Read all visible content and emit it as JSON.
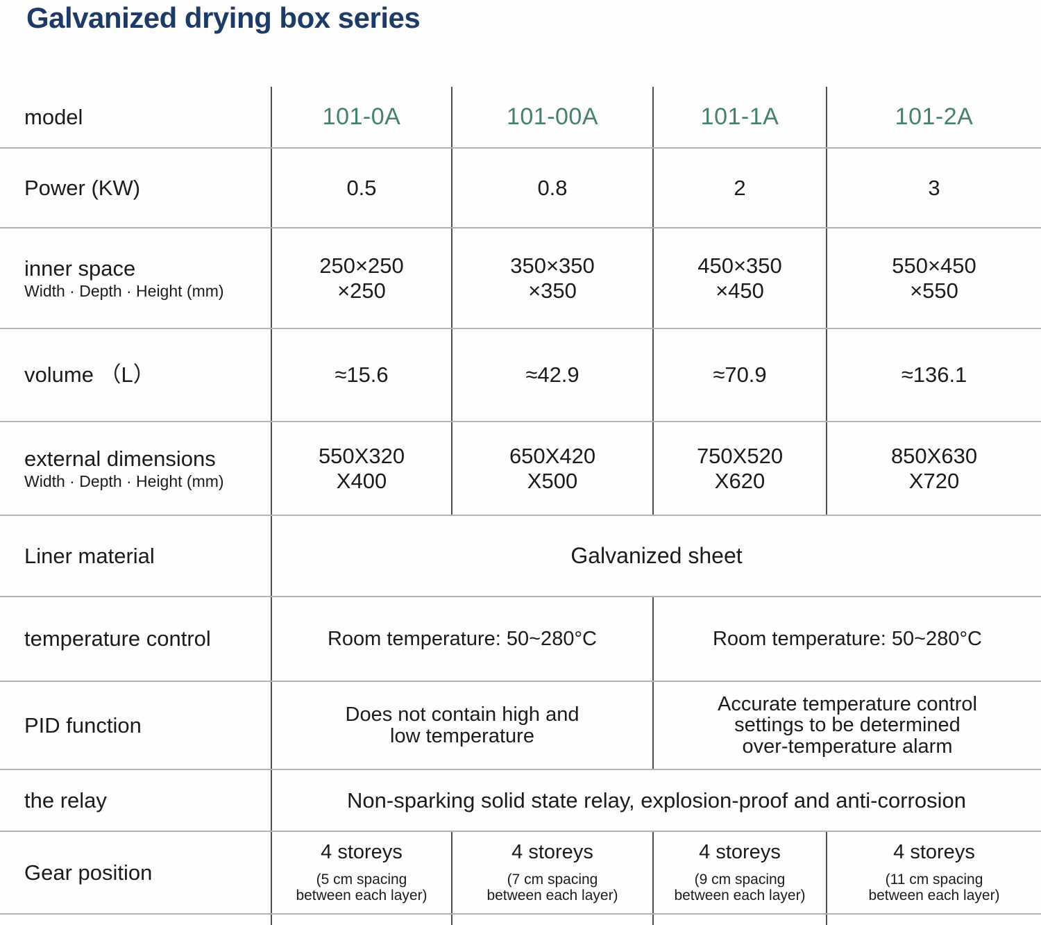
{
  "title": "Galvanized drying box series",
  "colors": {
    "title_navy": "#1e3a66",
    "model_green": "#44806a",
    "body_text": "#1b1b1b",
    "h_border": "#b3b3b3",
    "v_border": "#4f4f4f"
  },
  "table": {
    "header": {
      "label": "model",
      "models": [
        "101-0A",
        "101-00A",
        "101-1A",
        "101-2A"
      ]
    },
    "power": {
      "label": "Power (KW)",
      "values": [
        "0.5",
        "0.8",
        "2",
        "3"
      ]
    },
    "inner_space": {
      "label": "inner space",
      "sublabel": "Width · Depth · Height (mm)",
      "values": [
        "250×250\n×250",
        "350×350\n×350",
        "450×350\n×450",
        "550×450\n×550"
      ]
    },
    "volume": {
      "label": "volume （L）",
      "values": [
        "≈15.6",
        "≈42.9",
        "≈70.9",
        "≈136.1"
      ]
    },
    "external": {
      "label": "external dimensions",
      "sublabel": "Width · Depth · Height (mm)",
      "values": [
        "550X320\nX400",
        "650X420\nX500",
        "750X520\nX620",
        "850X630\nX720"
      ]
    },
    "liner": {
      "label": "Liner material",
      "value": "Galvanized sheet"
    },
    "temperature": {
      "label": "temperature control",
      "left": "Room temperature: 50~280°C",
      "right": "Room temperature: 50~280°C"
    },
    "pid": {
      "label": "PID function",
      "left": "Does not contain high and\nlow temperature",
      "right": "Accurate temperature control\nsettings to be determined\nover-temperature alarm"
    },
    "relay": {
      "label": "the relay",
      "value": "Non-sparking solid state relay, explosion-proof and anti-corrosion"
    },
    "gear": {
      "label": "Gear position",
      "mains": [
        "4 storeys",
        "4 storeys",
        "4 storeys",
        "4 storeys"
      ],
      "subs": [
        "(5 cm spacing\nbetween each layer)",
        "(7 cm spacing\nbetween each layer)",
        "(9 cm spacing\nbetween each layer)",
        "(11 cm spacing\nbetween each layer)"
      ]
    }
  }
}
